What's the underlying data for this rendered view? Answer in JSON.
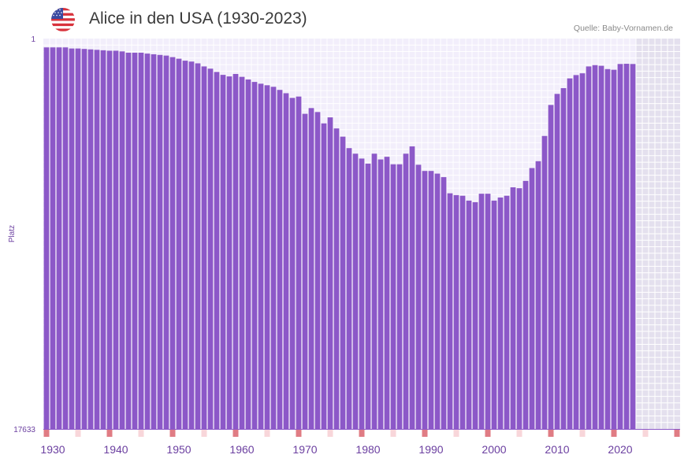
{
  "header": {
    "title": "Alice in den USA (1930-2023)",
    "source": "Quelle: Baby-Vornamen.de",
    "flag_icon": "us-flag-icon"
  },
  "colors": {
    "bar": "#8c58c8",
    "plot_background": "#f2eefb",
    "future_background": "#e4e0ee",
    "grid": "#ffffff",
    "decade_marker": "#e07c84",
    "year_marker": "#f8d6da",
    "axis_text": "#6b3fa0"
  },
  "chart_data": {
    "type": "bar",
    "title": "Alice in den USA (1930-2023)",
    "xlabel": "",
    "ylabel": "Platz",
    "y_axis_inverted": true,
    "ylim": [
      1,
      17633
    ],
    "y_tick_labels": [
      "1",
      "17633"
    ],
    "xlim": [
      1929,
      2029
    ],
    "x_tick_values": [
      1930,
      1940,
      1950,
      1960,
      1970,
      1980,
      1990,
      2000,
      2010,
      2020
    ],
    "x_tick_labels": [
      "1930",
      "1940",
      "1950",
      "1960",
      "1970",
      "1980",
      "1990",
      "2000",
      "2010",
      "2020"
    ],
    "future_region_start": 2023,
    "series": [
      {
        "name": "Platz",
        "x": [
          1929,
          1930,
          1931,
          1932,
          1933,
          1934,
          1935,
          1936,
          1937,
          1938,
          1939,
          1940,
          1941,
          1942,
          1943,
          1944,
          1945,
          1946,
          1947,
          1948,
          1949,
          1950,
          1951,
          1952,
          1953,
          1954,
          1955,
          1956,
          1957,
          1958,
          1959,
          1960,
          1961,
          1962,
          1963,
          1964,
          1965,
          1966,
          1967,
          1968,
          1969,
          1970,
          1971,
          1972,
          1973,
          1974,
          1975,
          1976,
          1977,
          1978,
          1979,
          1980,
          1981,
          1982,
          1983,
          1984,
          1985,
          1986,
          1987,
          1988,
          1989,
          1990,
          1991,
          1992,
          1993,
          1994,
          1995,
          1996,
          1997,
          1998,
          1999,
          2000,
          2001,
          2002,
          2003,
          2004,
          2005,
          2006,
          2007,
          2008,
          2009,
          2010,
          2011,
          2012,
          2013,
          2014,
          2015,
          2016,
          2017,
          2018,
          2019,
          2020,
          2021,
          2022
        ],
        "values": [
          400,
          400,
          400,
          400,
          450,
          450,
          470,
          490,
          510,
          530,
          550,
          550,
          580,
          640,
          640,
          640,
          680,
          710,
          740,
          770,
          840,
          910,
          1000,
          1040,
          1120,
          1260,
          1360,
          1510,
          1640,
          1710,
          1600,
          1730,
          1850,
          1960,
          2040,
          2110,
          2180,
          2320,
          2470,
          2680,
          2620,
          3400,
          3140,
          3320,
          3830,
          3560,
          4060,
          4430,
          4950,
          5200,
          5420,
          5650,
          5200,
          5460,
          5340,
          5680,
          5680,
          5200,
          4870,
          5700,
          5980,
          5980,
          6100,
          6260,
          6990,
          7070,
          7100,
          7320,
          7390,
          7010,
          7010,
          7320,
          7180,
          7100,
          6720,
          6760,
          6430,
          5850,
          5540,
          4400,
          3000,
          2500,
          2240,
          1800,
          1650,
          1570,
          1260,
          1200,
          1230,
          1380,
          1410,
          1150,
          1140,
          1150
        ]
      }
    ]
  }
}
